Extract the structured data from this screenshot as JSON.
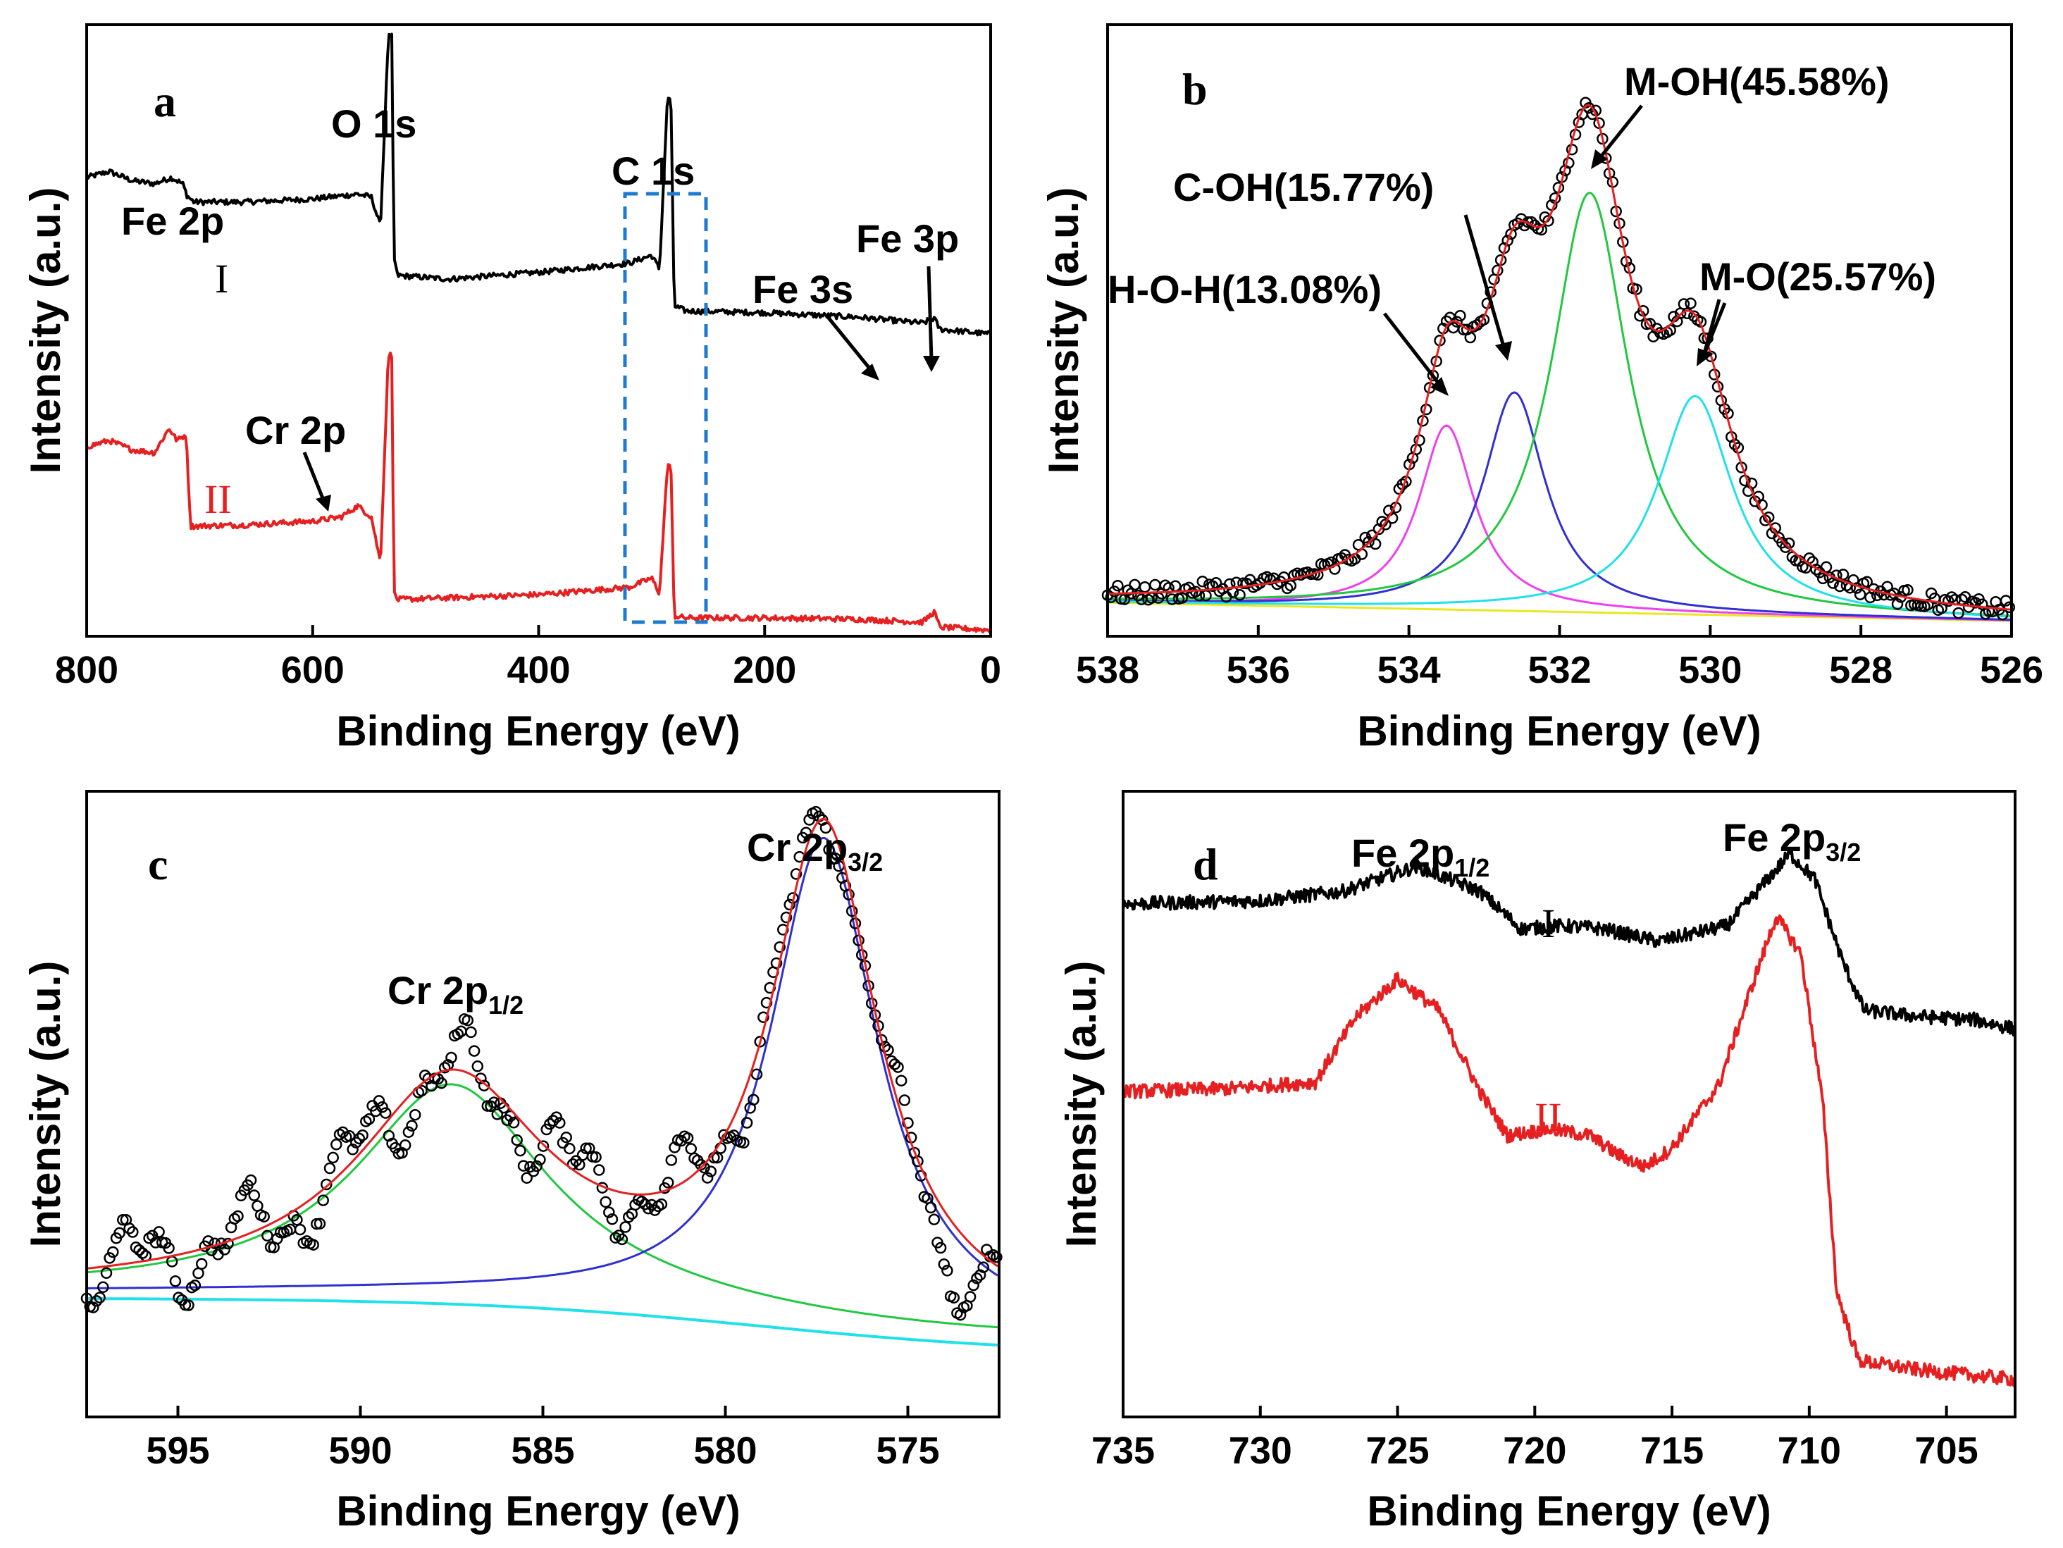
{
  "chart_data": [
    {
      "panel": "a",
      "type": "line",
      "xlabel": "Binding Energy (eV)",
      "ylabel": "Intensity (a.u.)",
      "xlim": [
        800,
        0
      ],
      "xticks": [
        800,
        600,
        400,
        200,
        0
      ],
      "ylim": [
        0,
        100
      ],
      "series": [
        {
          "name": "I",
          "color": "#000000",
          "points": [
            [
              800,
              75
            ],
            [
              780,
              76
            ],
            [
              760,
              74.5
            ],
            [
              740,
              74
            ],
            [
              725,
              75
            ],
            [
              715,
              74
            ],
            [
              711,
              72
            ],
            [
              705,
              71
            ],
            [
              660,
              71
            ],
            [
              600,
              71.5
            ],
            [
              560,
              72.3
            ],
            [
              548,
              71.8
            ],
            [
              540,
              67
            ],
            [
              533,
              98
            ],
            [
              530,
              98
            ],
            [
              528,
              62
            ],
            [
              525,
              59
            ],
            [
              480,
              58.4
            ],
            [
              400,
              59.5
            ],
            [
              320,
              61
            ],
            [
              300,
              62.3
            ],
            [
              293,
              60
            ],
            [
              286,
              88
            ],
            [
              283,
              88
            ],
            [
              280,
              54
            ],
            [
              270,
              53.2
            ],
            [
              200,
              52.9
            ],
            [
              120,
              52.2
            ],
            [
              60,
              51.2
            ],
            [
              50,
              52
            ],
            [
              45,
              50.2
            ],
            [
              0,
              49.4
            ]
          ]
        },
        {
          "name": "II",
          "color": "#e62020",
          "points": [
            [
              800,
              31
            ],
            [
              780,
              32
            ],
            [
              760,
              30.5
            ],
            [
              740,
              30
            ],
            [
              727,
              34
            ],
            [
              720,
              32
            ],
            [
              712,
              33
            ],
            [
              708,
              18
            ],
            [
              660,
              18.2
            ],
            [
              600,
              18.8
            ],
            [
              575,
              19.5
            ],
            [
              560,
              21.3
            ],
            [
              548,
              19.5
            ],
            [
              540,
              12
            ],
            [
              533,
              46
            ],
            [
              530,
              46
            ],
            [
              528,
              7
            ],
            [
              525,
              6
            ],
            [
              400,
              6.8
            ],
            [
              320,
              8
            ],
            [
              300,
              9.5
            ],
            [
              293,
              7
            ],
            [
              286,
              28
            ],
            [
              283,
              28
            ],
            [
              280,
              3.3
            ],
            [
              270,
              3
            ],
            [
              200,
              3
            ],
            [
              120,
              2.8
            ],
            [
              60,
              2.3
            ],
            [
              50,
              4
            ],
            [
              45,
              1.5
            ],
            [
              0,
              1
            ]
          ]
        }
      ],
      "annotations": [
        "Fe 2p",
        "O 1s",
        "C 1s",
        "Fe 3s",
        "Fe 3p",
        "Cr 2p"
      ],
      "highlight_box_x_range": [
        325,
        250
      ],
      "series_labels": [
        "I",
        "II"
      ]
    },
    {
      "panel": "b",
      "type": "line",
      "xlabel": "Binding Energy (eV)",
      "ylabel": "Intensity (a.u.)",
      "xlim": [
        538,
        526
      ],
      "xticks": [
        538,
        536,
        534,
        532,
        530,
        528,
        526
      ],
      "ylim": [
        0,
        100
      ],
      "series": [
        {
          "name": "H-O-H",
          "color": "#ee40ee",
          "center": 533.5,
          "width": 0.45,
          "amplitude": 32
        },
        {
          "name": "C-OH",
          "color": "#3030d0",
          "center": 532.6,
          "width": 0.5,
          "amplitude": 38
        },
        {
          "name": "M-OH",
          "color": "#20c840",
          "center": 531.6,
          "width": 0.62,
          "amplitude": 73
        },
        {
          "name": "M-O",
          "color": "#20e0e8",
          "center": 530.2,
          "width": 0.6,
          "amplitude": 38
        }
      ],
      "background_color": "#e8e820",
      "fit_color": "#e62020",
      "data_marker": "open-circle",
      "annotations": [
        "M-OH(45.58%)",
        "C-OH(15.77%)",
        "M-O(25.57%)",
        "H-O-H(13.08%)"
      ]
    },
    {
      "panel": "c",
      "type": "line",
      "xlabel": "Binding Energy (eV)",
      "ylabel": "Intensity (a.u.)",
      "xlim": [
        597.5,
        572.5
      ],
      "xticks": [
        595,
        590,
        585,
        580,
        575
      ],
      "ylim": [
        0,
        100
      ],
      "series": [
        {
          "name": "Cr 2p1/2",
          "color": "#20c840",
          "center": 587.5,
          "width": 3.2,
          "amplitude": 34
        },
        {
          "name": "Cr 2p3/2",
          "color": "#3030d0",
          "center": 577.3,
          "width": 1.8,
          "amplitude": 78
        }
      ],
      "fit_color": "#e62020",
      "background_color": "#20e0e8",
      "data_marker": "open-circle",
      "annotations": {
        "main": "Cr 2p",
        "sub_left": "1/2",
        "sub_right": "3/2"
      }
    },
    {
      "panel": "d",
      "type": "line",
      "xlabel": "Binding Energy (eV)",
      "ylabel": "Intensity (a.u.)",
      "xlim": [
        735,
        702.5
      ],
      "xticks": [
        735,
        730,
        725,
        720,
        715,
        710,
        705
      ],
      "ylim": [
        0,
        100
      ],
      "series": [
        {
          "name": "I",
          "color": "#000000",
          "points": [
            [
              735,
              82
            ],
            [
              730,
              82.5
            ],
            [
              727,
              84
            ],
            [
              724.3,
              88
            ],
            [
              722,
              84
            ],
            [
              720.5,
              78
            ],
            [
              719,
              78.5
            ],
            [
              717.5,
              78
            ],
            [
              715.5,
              76
            ],
            [
              713,
              78.5
            ],
            [
              711.5,
              86
            ],
            [
              710.7,
              90
            ],
            [
              709.8,
              86
            ],
            [
              708.8,
              73
            ],
            [
              708,
              65
            ],
            [
              706,
              64
            ],
            [
              704,
              63.5
            ],
            [
              702.5,
              62
            ]
          ]
        },
        {
          "name": "II",
          "color": "#e62020",
          "points": [
            [
              735,
              52
            ],
            [
              731,
              52.5
            ],
            [
              728,
              53.5
            ],
            [
              726.5,
              64
            ],
            [
              725,
              70
            ],
            [
              723.5,
              65
            ],
            [
              722,
              52
            ],
            [
              721,
              45
            ],
            [
              719.5,
              46
            ],
            [
              718,
              45
            ],
            [
              717,
              42
            ],
            [
              716,
              40
            ],
            [
              715,
              43
            ],
            [
              713.3,
              53
            ],
            [
              712,
              70
            ],
            [
              711.2,
              80
            ],
            [
              710.3,
              74
            ],
            [
              709.5,
              50
            ],
            [
              709,
              20
            ],
            [
              708.2,
              9
            ],
            [
              706,
              7.5
            ],
            [
              702.5,
              6
            ]
          ]
        }
      ],
      "annotations": {
        "fe": "Fe 2p",
        "sub_left": "1/2",
        "sub_right": "3/2"
      },
      "series_labels": [
        "I",
        "II"
      ]
    }
  ],
  "labels": {
    "panel_a": "a",
    "panel_b": "b",
    "panel_c": "c",
    "panel_d": "d",
    "xlabel": "Binding Energy (eV)",
    "ylabel": "Intensity (a.u.)"
  }
}
